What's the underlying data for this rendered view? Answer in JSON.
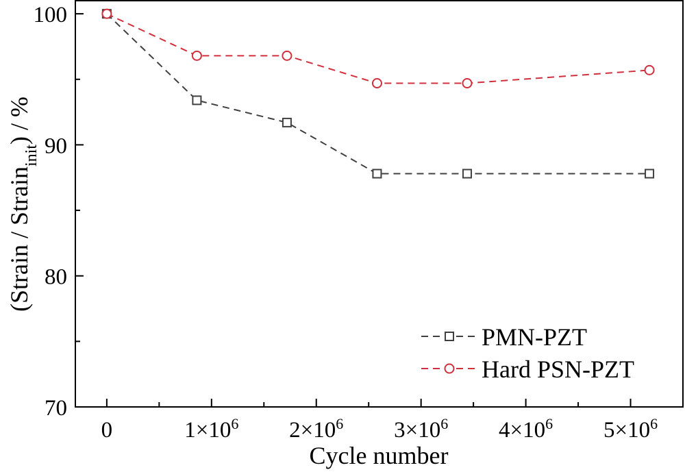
{
  "chart_data": {
    "type": "line",
    "xlabel": "Cycle number",
    "ylabel": {
      "prefix": "(Strain / Strain",
      "subscript": "init",
      "suffix": ") / %"
    },
    "xlim": [
      -300000,
      5500000
    ],
    "ylim": [
      70,
      101
    ],
    "x_ticks": [
      {
        "value": 0,
        "label": "0"
      },
      {
        "value": 1000000,
        "label": "1×10",
        "exp": "6"
      },
      {
        "value": 2000000,
        "label": "2×10",
        "exp": "6"
      },
      {
        "value": 3000000,
        "label": "3×10",
        "exp": "6"
      },
      {
        "value": 4000000,
        "label": "4×10",
        "exp": "6"
      },
      {
        "value": 5000000,
        "label": "5×10",
        "exp": "6"
      }
    ],
    "y_ticks": [
      {
        "value": 70,
        "label": "70"
      },
      {
        "value": 80,
        "label": "80"
      },
      {
        "value": 90,
        "label": "90"
      },
      {
        "value": 100,
        "label": "100"
      }
    ],
    "grid": false,
    "legend_position": "bottom-right",
    "series": [
      {
        "name": "PMN-PZT",
        "marker": "square",
        "color": "#404040",
        "x": [
          0,
          860000,
          1720000,
          2580000,
          3440000,
          5180000
        ],
        "y": [
          100,
          93.4,
          91.7,
          87.8,
          87.8,
          87.8
        ]
      },
      {
        "name": "Hard PSN-PZT",
        "marker": "circle",
        "color": "#d0303c",
        "x": [
          0,
          860000,
          1720000,
          2580000,
          3440000,
          5180000
        ],
        "y": [
          100,
          96.8,
          96.8,
          94.7,
          94.7,
          95.7
        ]
      }
    ]
  }
}
